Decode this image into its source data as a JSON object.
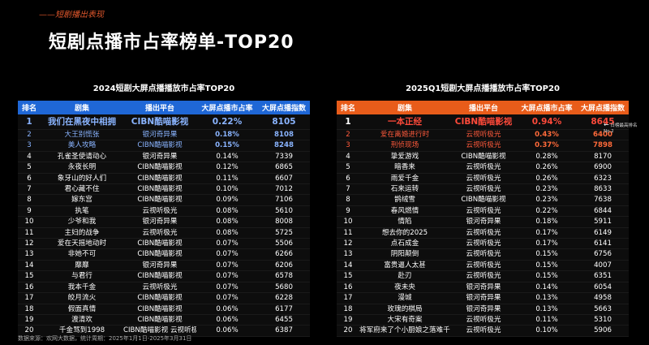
{
  "header": {
    "kicker": "——短剧播出表现",
    "title": "短剧点播市占率榜单-TOP20"
  },
  "left": {
    "title": "2024短剧大屏点播播放市占率TOP20",
    "columns": [
      "排名",
      "剧集",
      "播出平台",
      "大屏点播市占率",
      "大屏点播指数"
    ],
    "rows": [
      [
        "1",
        "我们在黑夜中相拥",
        "CIBN酷喵影视",
        "0.22%",
        "8105"
      ],
      [
        "2",
        "大王别慌张",
        "银河奇异果",
        "0.18%",
        "8108"
      ],
      [
        "3",
        "美人攻略",
        "CIBN酷喵影视",
        "0.15%",
        "8248"
      ],
      [
        "4",
        "孔雀圣使请动心",
        "银河奇异果",
        "0.14%",
        "7339"
      ],
      [
        "5",
        "永夜长明",
        "CIBN酷喵影视",
        "0.12%",
        "6865"
      ],
      [
        "6",
        "象牙山的好人们",
        "CIBN酷喵影视",
        "0.11%",
        "6607"
      ],
      [
        "7",
        "君心藏不住",
        "CIBN酷喵影视",
        "0.10%",
        "7012"
      ],
      [
        "8",
        "嫁东宫",
        "CIBN酷喵影视",
        "0.09%",
        "7106"
      ],
      [
        "9",
        "执笔",
        "云视听极光",
        "0.08%",
        "5610"
      ],
      [
        "10",
        "少爷和我",
        "银河奇异果",
        "0.08%",
        "8008"
      ],
      [
        "11",
        "主妇的战争",
        "云视听极光",
        "0.08%",
        "5725"
      ],
      [
        "12",
        "爱在天摇地动时",
        "CIBN酷喵影视",
        "0.07%",
        "5506"
      ],
      [
        "13",
        "非她不可",
        "CIBN酷喵影视",
        "0.07%",
        "6266"
      ],
      [
        "14",
        "靡靡",
        "银河奇异果",
        "0.07%",
        "6206"
      ],
      [
        "15",
        "与君行",
        "CIBN酷喵影视",
        "0.07%",
        "6578"
      ],
      [
        "16",
        "我本千金",
        "云视听极光",
        "0.07%",
        "5680"
      ],
      [
        "17",
        "皎月流火",
        "CIBN酷喵影视",
        "0.07%",
        "6228"
      ],
      [
        "18",
        "假面真情",
        "CIBN酷喵影视",
        "0.06%",
        "6177"
      ],
      [
        "19",
        "渡清欢",
        "CIBN酷喵影视",
        "0.06%",
        "6455"
      ],
      [
        "20",
        "千金骂到1998",
        "CIBN酷喵影视 云视听极光",
        "0.06%",
        "6387"
      ]
    ]
  },
  "right": {
    "title": "2025Q1短剧大屏点播播放市占率TOP20",
    "columns": [
      "排名",
      "剧集",
      "播出平台",
      "大屏点播市占率",
      "大屏点播指数"
    ],
    "rows": [
      [
        "1",
        "一本正经",
        "CIBN酷喵影视",
        "0.94%",
        "8645"
      ],
      [
        "2",
        "爱在离婚进行时",
        "云视听极光",
        "0.43%",
        "6400"
      ],
      [
        "3",
        "刑侦现场",
        "云视听极光",
        "0.37%",
        "7898"
      ],
      [
        "4",
        "挚爱游戏",
        "CIBN酷喵影视",
        "0.28%",
        "8170"
      ],
      [
        "5",
        "暗香来",
        "云视听极光",
        "0.26%",
        "6900"
      ],
      [
        "6",
        "雨爱千金",
        "云视听极光",
        "0.26%",
        "6323"
      ],
      [
        "7",
        "石来运转",
        "云视听极光",
        "0.23%",
        "8633"
      ],
      [
        "8",
        "鹊绒雪",
        "CIBN酷喵影视",
        "0.23%",
        "7638"
      ],
      [
        "9",
        "春风燃情",
        "云视听极光",
        "0.22%",
        "6844"
      ],
      [
        "10",
        "情陷",
        "银河奇异果",
        "0.18%",
        "5911"
      ],
      [
        "11",
        "想去你的2025",
        "云视听极光",
        "0.17%",
        "6149"
      ],
      [
        "12",
        "点石成金",
        "云视听极光",
        "0.17%",
        "6141"
      ],
      [
        "13",
        "阴阳颠倒",
        "云视听极光",
        "0.15%",
        "6756"
      ],
      [
        "14",
        "富贵逼人太甚",
        "云视听极光",
        "0.15%",
        "4007"
      ],
      [
        "15",
        "赴刃",
        "云视听极光",
        "0.15%",
        "6351"
      ],
      [
        "16",
        "夜未央",
        "银河奇异果",
        "0.14%",
        "6054"
      ],
      [
        "17",
        "漫城",
        "银河奇异果",
        "0.13%",
        "4958"
      ],
      [
        "18",
        "玫瑰的棋局",
        "银河奇异果",
        "0.13%",
        "5663"
      ],
      [
        "19",
        "大宋有奇案",
        "云视听极光",
        "0.11%",
        "5310"
      ],
      [
        "20",
        "将军府来了个小厨娘之落难千金",
        "云视听极光",
        "0.10%",
        "5906"
      ]
    ],
    "callout": "日榜最高排名No.2"
  },
  "footer": "数据来源：欢网大数据，统计周期：2025年1月1日-2025年3月31日",
  "colors": {
    "left_accent": "#1f67d6",
    "right_accent": "#e85c1a",
    "left_highlight": "#8ab4ff",
    "right_highlight": "#ff4a3a"
  }
}
